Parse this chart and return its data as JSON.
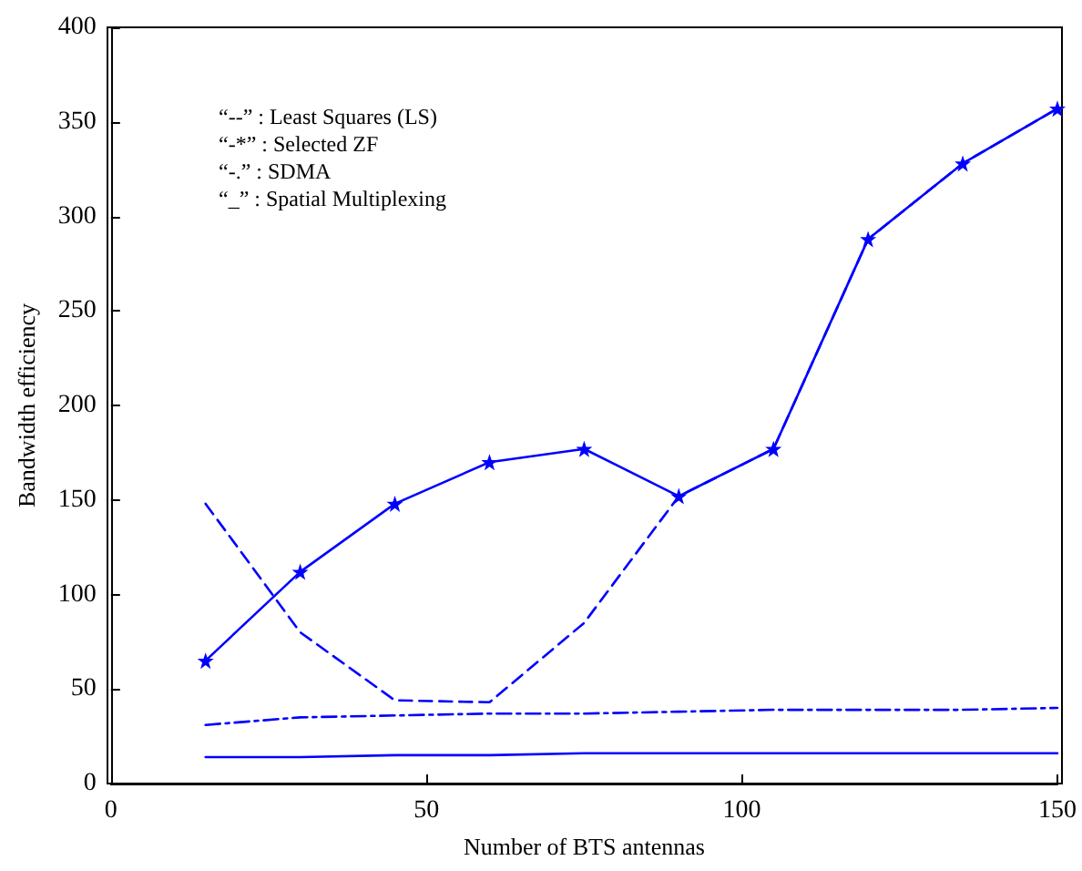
{
  "chart_data": {
    "type": "line",
    "xlabel": "Number of BTS antennas",
    "ylabel": "Bandwidth efficiency",
    "x": [
      15,
      30,
      45,
      60,
      75,
      90,
      105,
      120,
      135,
      150
    ],
    "xlim": [
      0,
      150
    ],
    "xticks": [
      0,
      50,
      100,
      150
    ],
    "ylim": [
      0,
      400
    ],
    "yticks": [
      0,
      50,
      100,
      150,
      200,
      250,
      300,
      350,
      400
    ],
    "grid": false,
    "annotations": [
      "“--” : Least Squares (LS)",
      "“-*” : Selected ZF",
      "“-.” : SDMA",
      "“_” : Spatial Multiplexing"
    ],
    "series": [
      {
        "color": "#0000ff",
        "line_style": "dashed",
        "values": [
          148,
          80,
          44,
          43,
          85,
          152,
          177,
          288,
          328,
          357
        ]
      },
      {
        "color": "#0000ff",
        "line_style": "solid",
        "marker": "star",
        "values": [
          65,
          112,
          148,
          170,
          177,
          152,
          177,
          288,
          328,
          357
        ]
      },
      {
        "color": "#0000ff",
        "line_style": "dotted",
        "marker": "none",
        "values": [
          31,
          35,
          36,
          37,
          37,
          38,
          39,
          39,
          39,
          40
        ]
      },
      {
        "color": "#0000ff",
        "line_style": "solid",
        "marker": "none",
        "values": [
          14,
          14,
          15,
          15,
          16,
          16,
          16,
          16,
          16,
          16
        ]
      }
    ]
  }
}
